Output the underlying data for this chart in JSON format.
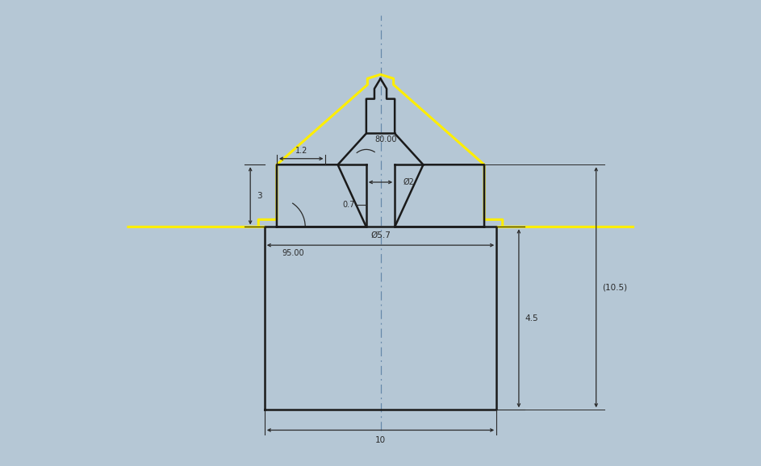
{
  "background_color": "#b5c7d5",
  "figure_width": 9.43,
  "figure_height": 5.78,
  "dpi": 100,
  "profile_color": "#1a1a1a",
  "yellow_color": "#ffee00",
  "dim_color": "#2a2a2a",
  "centerline_color": "#6688aa",
  "annotations": {
    "dim_3": "3",
    "dim_1p2": "1.2",
    "angle_95": "95.00",
    "dim_0p7": "0.7",
    "dim_80": "80.00",
    "dim_d2": "Ø2",
    "dim_d5p7": "Ø5.7",
    "dim_4p5": "4.5",
    "dim_10": "10",
    "dim_10p5": "(10.5)"
  },
  "xlim": [
    -6.5,
    6.5
  ],
  "ylim": [
    -5.8,
    5.5
  ]
}
